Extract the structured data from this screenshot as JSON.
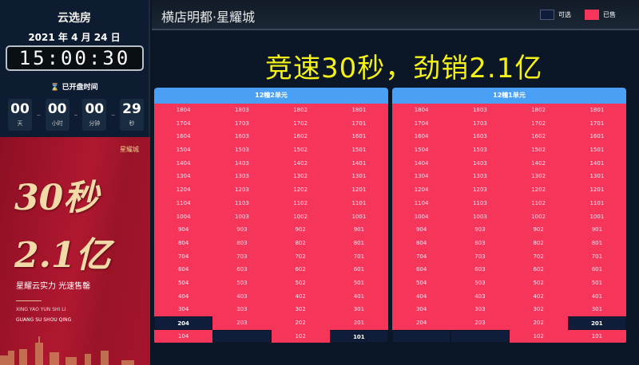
{
  "sidebar": {
    "title": "云选房",
    "date": "2021 年 4 月 24 日",
    "clock": "15:00:30",
    "opened_label": "已开盘时间",
    "countdown": [
      {
        "value": "00",
        "unit": "天"
      },
      {
        "value": "00",
        "unit": "小时"
      },
      {
        "value": "00",
        "unit": "分钟"
      },
      {
        "value": "29",
        "unit": "秒"
      }
    ],
    "poster": {
      "logo": "星耀城",
      "line1": "30秒",
      "line2": "2.1亿",
      "slogan": "星耀云实力 光速售罄",
      "pinyin1": "XING YAO YUN SHI LI",
      "pinyin2": "GUANG SU SHOU QING"
    }
  },
  "header": {
    "title": "横店明都·星耀城",
    "legend": [
      {
        "label": "可选",
        "color": "#0f1d3b"
      },
      {
        "label": "已售",
        "color": "#f5365a"
      }
    ]
  },
  "slogan": "竞速30秒，劲销2.1亿",
  "colors": {
    "available": "#0f1d3b",
    "sold": "#f5365a",
    "header": "#4aa0f4"
  },
  "buildings": [
    {
      "name": "12幢2单元",
      "rows": [
        [
          "1804",
          "1803",
          "1802",
          "1801"
        ],
        [
          "1704",
          "1703",
          "1702",
          "1701"
        ],
        [
          "1604",
          "1603",
          "1602",
          "1601"
        ],
        [
          "1504",
          "1503",
          "1502",
          "1501"
        ],
        [
          "1404",
          "1403",
          "1402",
          "1401"
        ],
        [
          "1304",
          "1303",
          "1302",
          "1301"
        ],
        [
          "1204",
          "1203",
          "1202",
          "1201"
        ],
        [
          "1104",
          "1103",
          "1102",
          "1101"
        ],
        [
          "1004",
          "1003",
          "1002",
          "1001"
        ],
        [
          "904",
          "903",
          "902",
          "901"
        ],
        [
          "804",
          "803",
          "802",
          "801"
        ],
        [
          "704",
          "703",
          "702",
          "701"
        ],
        [
          "604",
          "603",
          "602",
          "601"
        ],
        [
          "504",
          "503",
          "502",
          "501"
        ],
        [
          "404",
          "403",
          "402",
          "401"
        ],
        [
          "304",
          "303",
          "302",
          "301"
        ],
        [
          "204",
          "203",
          "202",
          "201"
        ],
        [
          "104",
          "",
          "102",
          "101"
        ]
      ],
      "available": [
        "204",
        "101"
      ]
    },
    {
      "name": "12幢1单元",
      "rows": [
        [
          "1804",
          "1803",
          "1802",
          "1801"
        ],
        [
          "1704",
          "1703",
          "1702",
          "1701"
        ],
        [
          "1604",
          "1603",
          "1602",
          "1601"
        ],
        [
          "1504",
          "1503",
          "1502",
          "1501"
        ],
        [
          "1404",
          "1403",
          "1402",
          "1401"
        ],
        [
          "1304",
          "1303",
          "1302",
          "1301"
        ],
        [
          "1204",
          "1203",
          "1202",
          "1201"
        ],
        [
          "1104",
          "1103",
          "1102",
          "1101"
        ],
        [
          "1004",
          "1003",
          "1002",
          "1001"
        ],
        [
          "904",
          "903",
          "902",
          "901"
        ],
        [
          "804",
          "803",
          "802",
          "801"
        ],
        [
          "704",
          "703",
          "702",
          "701"
        ],
        [
          "604",
          "603",
          "602",
          "601"
        ],
        [
          "504",
          "503",
          "502",
          "501"
        ],
        [
          "404",
          "403",
          "402",
          "401"
        ],
        [
          "304",
          "303",
          "302",
          "301"
        ],
        [
          "204",
          "203",
          "202",
          "201"
        ],
        [
          "",
          "",
          "102",
          "101"
        ]
      ],
      "available": [
        "201"
      ]
    }
  ]
}
